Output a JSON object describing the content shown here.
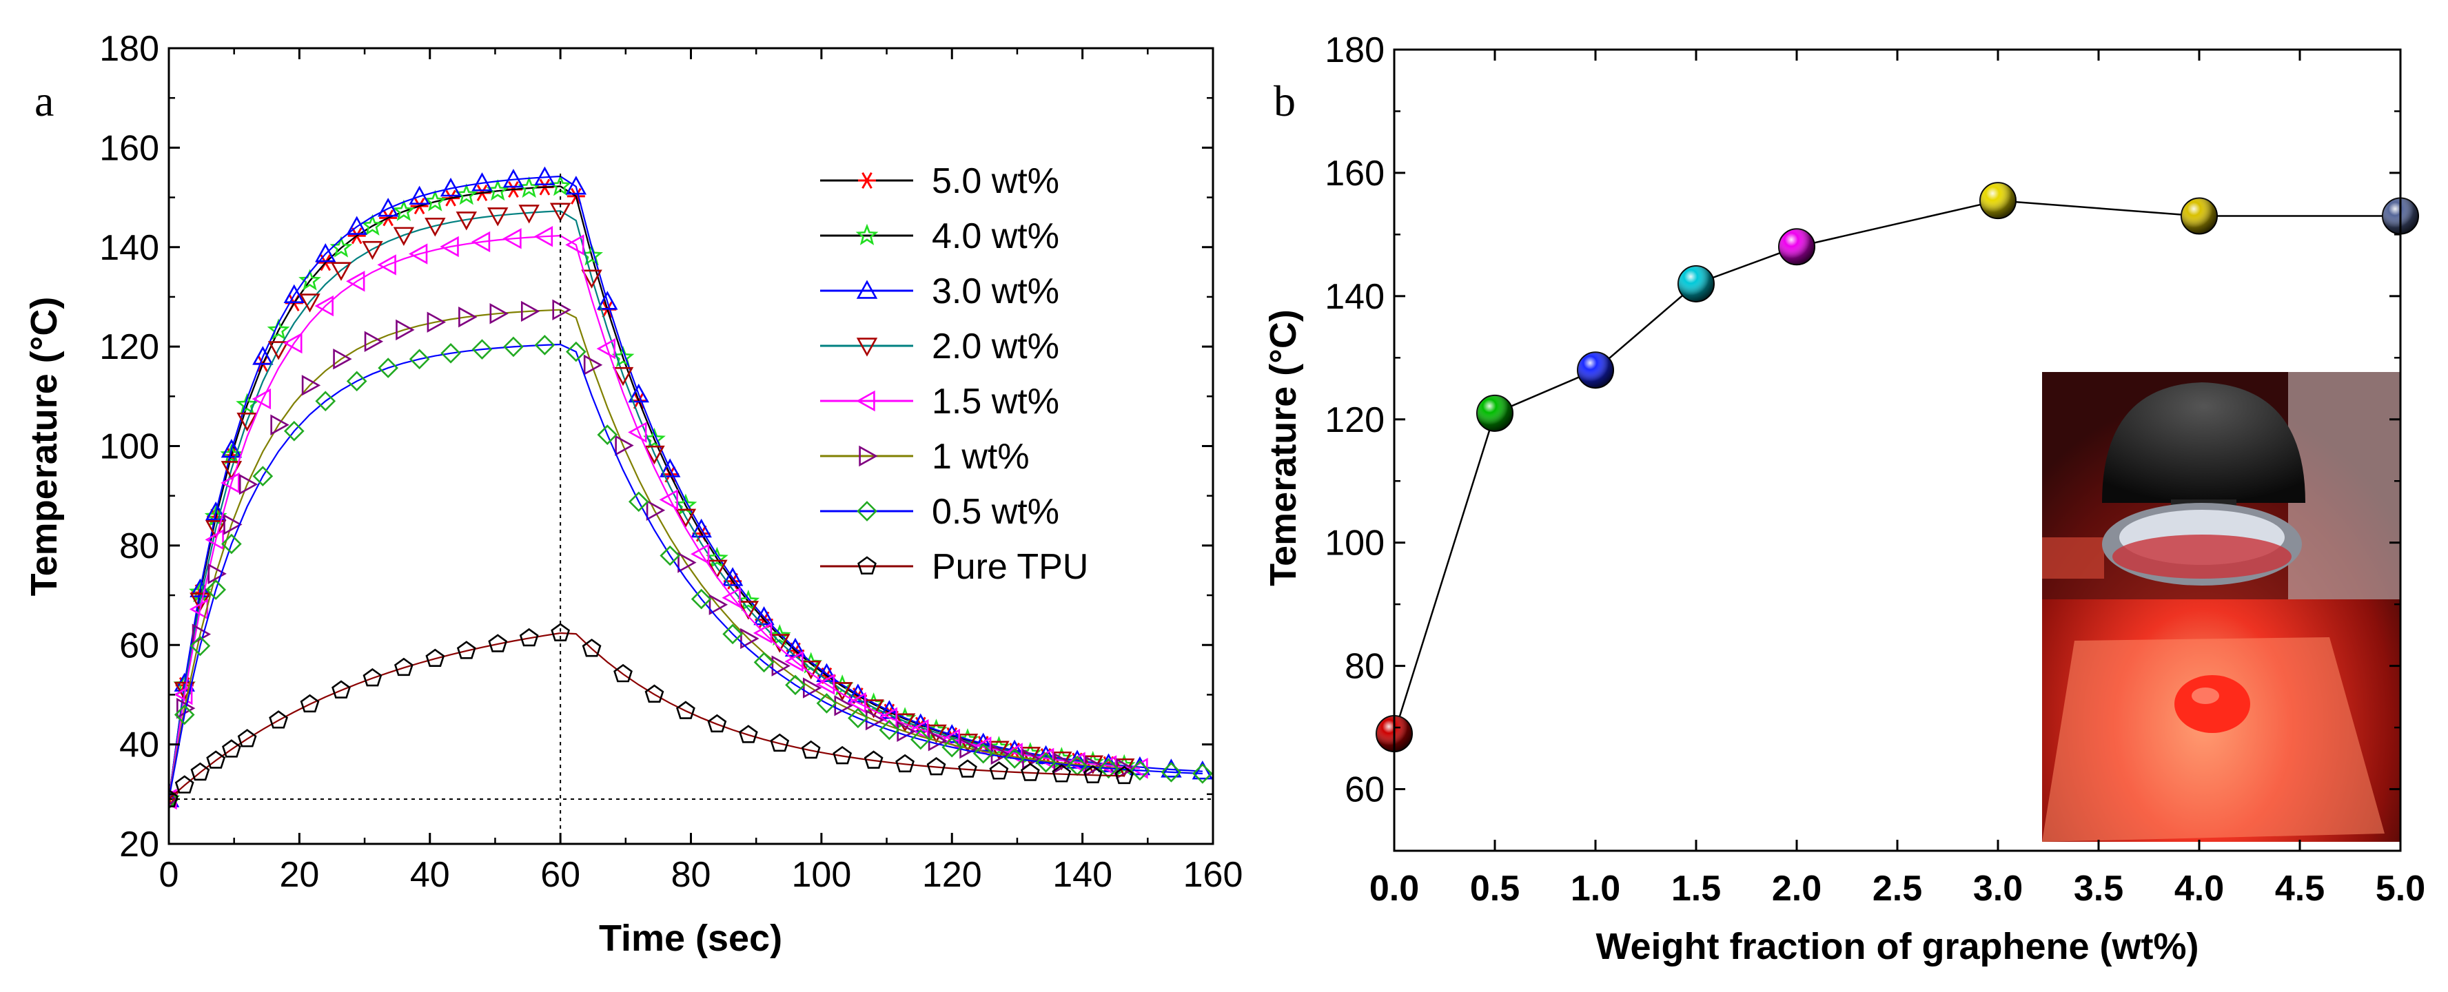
{
  "chart_data": [
    {
      "panel": "a",
      "type": "line",
      "xlabel": "Time (sec)",
      "ylabel": "Temperature (°C)",
      "xlim": [
        0,
        160
      ],
      "ylim": [
        20,
        180
      ],
      "xticks": [
        0,
        20,
        40,
        60,
        80,
        100,
        120,
        140,
        160
      ],
      "yticks": [
        20,
        40,
        60,
        80,
        100,
        120,
        140,
        160,
        180
      ],
      "reference_lines": {
        "time_sec": 60,
        "temperature_c": 29
      },
      "legend_position": "top-right",
      "series": [
        {
          "name": "5.0 wt%",
          "marker": "asterisk",
          "color": "#ff0000",
          "line_color": "#000000",
          "plateau": 153,
          "t_end": 148
        },
        {
          "name": "4.0 wt%",
          "marker": "star",
          "color": "#22dd22",
          "line_color": "#000000",
          "plateau": 153,
          "t_end": 148
        },
        {
          "name": "3.0 wt%",
          "marker": "triangle-up",
          "color": "#0000ff",
          "line_color": "#0000ff",
          "plateau": 155,
          "t_end": 160
        },
        {
          "name": "2.0 wt%",
          "marker": "triangle-down",
          "color": "#aa0000",
          "line_color": "#008080",
          "plateau": 148,
          "t_end": 150
        },
        {
          "name": "1.5 wt%",
          "marker": "triangle-left",
          "color": "#ff00ff",
          "line_color": "#ff00ff",
          "plateau": 143,
          "t_end": 150
        },
        {
          "name": "1 wt%",
          "marker": "triangle-right",
          "color": "#800080",
          "line_color": "#808000",
          "plateau": 128,
          "t_end": 148
        },
        {
          "name": "0.5 wt%",
          "marker": "diamond",
          "color": "#22aa22",
          "line_color": "#0000ff",
          "plateau": 121,
          "t_end": 160
        },
        {
          "name": "Pure TPU",
          "marker": "pentagon",
          "color": "#000000",
          "line_color": "#8b0000",
          "plateau": 69,
          "t_end": 148
        }
      ]
    },
    {
      "panel": "b",
      "type": "line",
      "xlabel": "Weight fraction of graphene (wt%)",
      "ylabel": "Temerature (°C)",
      "xlim": [
        0,
        5
      ],
      "ylim": [
        50,
        180
      ],
      "xticks": [
        "0.0",
        "0.5",
        "1.0",
        "1.5",
        "2.0",
        "2.5",
        "3.0",
        "3.5",
        "4.0",
        "4.5",
        "5.0"
      ],
      "yticks": [
        60,
        80,
        100,
        120,
        140,
        160,
        180
      ],
      "x": [
        0,
        0.5,
        1.0,
        1.5,
        2.0,
        3.0,
        4.0,
        5.0
      ],
      "y": [
        69,
        121,
        128,
        142,
        148,
        155.5,
        153,
        153
      ],
      "point_colors": [
        "#cc0000",
        "#00bb00",
        "#1a2aff",
        "#00c8d8",
        "#ee00ee",
        "#e8d800",
        "#d8c000",
        "#556699"
      ],
      "inset": "photo of infrared lamp heating a sample on a film"
    }
  ]
}
